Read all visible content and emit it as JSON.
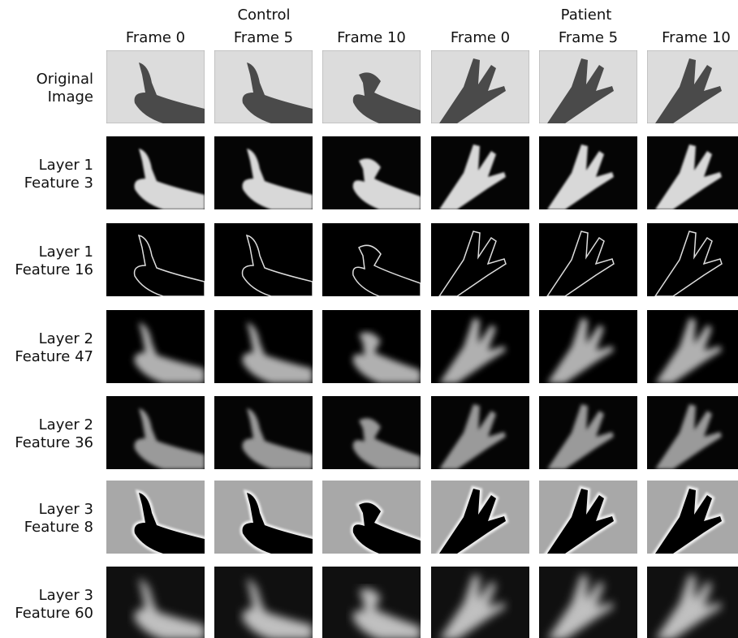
{
  "header": {
    "groups": [
      "Control",
      "Patient"
    ],
    "frames": [
      "Frame 0",
      "Frame 5",
      "Frame 10",
      "Frame 0",
      "Frame 5",
      "Frame 10"
    ]
  },
  "rows": [
    {
      "label": [
        "Original",
        "Image"
      ]
    },
    {
      "label": [
        "Layer 1",
        "Feature 3"
      ]
    },
    {
      "label": [
        "Layer 1",
        "Feature 16"
      ]
    },
    {
      "label": [
        "Layer 2",
        "Feature 47"
      ]
    },
    {
      "label": [
        "Layer 2",
        "Feature 36"
      ]
    },
    {
      "label": [
        "Layer 3",
        "Feature 8"
      ]
    },
    {
      "label": [
        "Layer 3",
        "Feature 60"
      ]
    }
  ]
}
